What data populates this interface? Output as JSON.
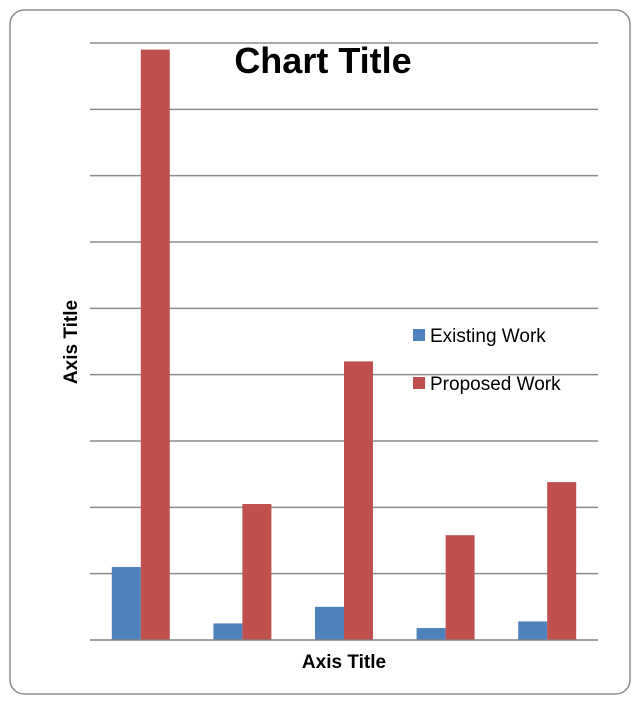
{
  "chart_data": {
    "type": "bar",
    "title": "Chart Title",
    "xlabel": "Axis Title",
    "ylabel": "Axis Title",
    "categories": [
      "",
      "",
      "",
      "",
      ""
    ],
    "series": [
      {
        "name": "Existing Work",
        "color": "#4F81BD",
        "values": [
          1.1,
          0.25,
          0.5,
          0.18,
          0.28
        ]
      },
      {
        "name": "Proposed Work",
        "color": "#C0504D",
        "values": [
          8.9,
          2.05,
          4.2,
          1.58,
          2.38
        ]
      }
    ],
    "ylim": [
      0,
      9
    ],
    "grid": true,
    "legend_position": "right",
    "show_tick_labels": false
  }
}
